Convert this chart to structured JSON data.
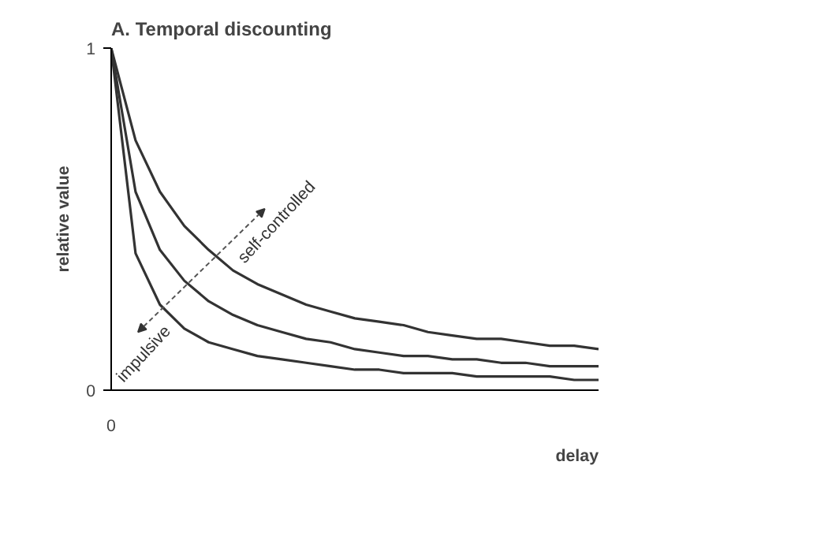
{
  "chart_data": {
    "type": "line",
    "title": "A. Temporal discounting",
    "xlabel": "delay",
    "ylabel": "relative value",
    "categories": [
      "0",
      null,
      null,
      null,
      null,
      null,
      null,
      null,
      null,
      null,
      null,
      null,
      null,
      null,
      null,
      null,
      null,
      null,
      null,
      null,
      null
    ],
    "series": [
      {
        "color": "#333333",
        "values": [
          1,
          0.73,
          0.58,
          0.48,
          0.41,
          0.35,
          0.31,
          0.28,
          0.25,
          0.23,
          0.21,
          0.2,
          0.19,
          0.17,
          0.16,
          0.15,
          0.15,
          0.14,
          0.13,
          0.13,
          0.12
        ]
      },
      {
        "color": "#333333",
        "values": [
          1,
          0.58,
          0.41,
          0.32,
          0.26,
          0.22,
          0.19,
          0.17,
          0.15,
          0.14,
          0.12,
          0.11,
          0.1,
          0.1,
          0.09,
          0.09,
          0.08,
          0.08,
          0.07,
          0.07,
          0.07
        ]
      },
      {
        "color": "#333333",
        "values": [
          1,
          0.4,
          0.25,
          0.18,
          0.14,
          0.12,
          0.1,
          0.09,
          0.08,
          0.07,
          0.06,
          0.06,
          0.05,
          0.05,
          0.05,
          0.04,
          0.04,
          0.04,
          0.04,
          0.03,
          0.03
        ]
      }
    ],
    "annotations": [
      "impulsive",
      "self-controlled"
    ],
    "ylim": [
      0,
      1
    ],
    "yticks": [
      0,
      1
    ],
    "marker": "none",
    "line_style": "solid"
  }
}
